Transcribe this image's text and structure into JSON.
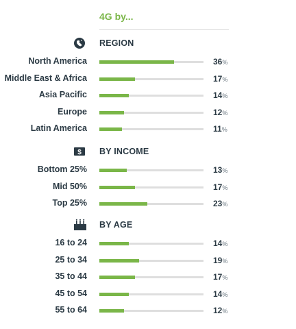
{
  "title": "4G by...",
  "accent_color": "#7ab648",
  "chart_data": {
    "type": "bar",
    "title": "4G by...",
    "unit": "%",
    "groups": [
      {
        "name": "REGION",
        "icon": "globe-icon",
        "categories": [
          "North America",
          "Middle East & Africa",
          "Asia Pacific",
          "Europe",
          "Latin America"
        ],
        "values": [
          36,
          17,
          14,
          12,
          11
        ]
      },
      {
        "name": "BY INCOME",
        "icon": "dollar-icon",
        "categories": [
          "Bottom 25%",
          "Mid 50%",
          "Top 25%"
        ],
        "values": [
          13,
          17,
          23
        ]
      },
      {
        "name": "BY AGE",
        "icon": "birthday-cake-icon",
        "categories": [
          "16 to 24",
          "25 to 34",
          "35 to 44",
          "45 to 54",
          "55 to 64"
        ],
        "values": [
          14,
          19,
          17,
          14,
          12
        ]
      }
    ],
    "xlim": [
      0,
      50
    ]
  }
}
